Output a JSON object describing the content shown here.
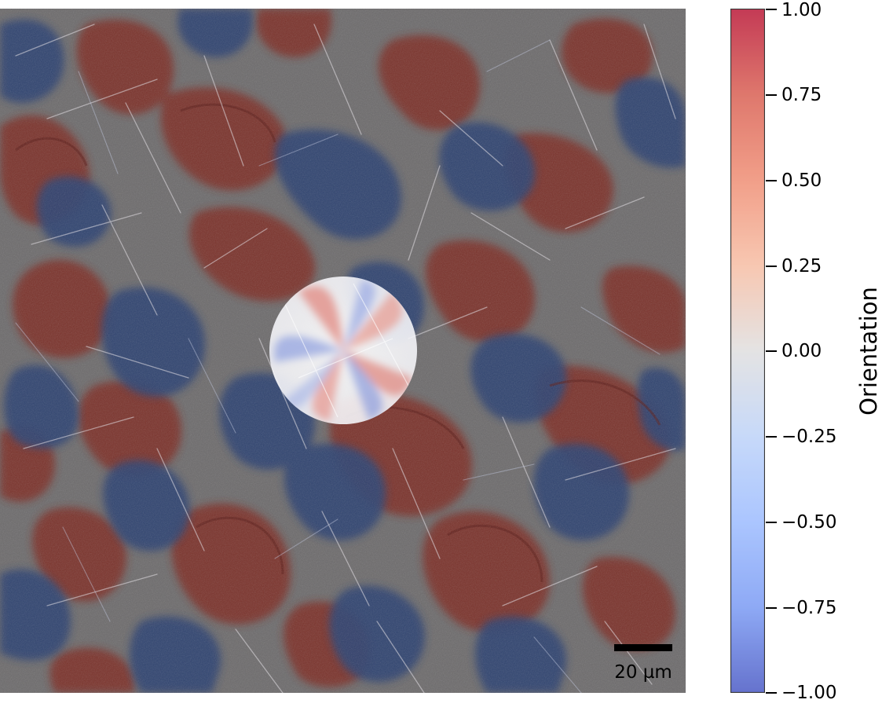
{
  "colorbar": {
    "label": "Orientation",
    "colormap": "coolwarm",
    "range": [
      -1.0,
      1.0
    ],
    "ticks": [
      "1.00",
      "0.75",
      "0.50",
      "0.25",
      "0.00",
      "−0.25",
      "−0.50",
      "−0.75",
      "−1.00"
    ],
    "colors": {
      "max": "#b40426",
      "mid": "#dddddd",
      "min": "#3b4cc0"
    }
  },
  "scalebar": {
    "label": "20 µm"
  },
  "image": {
    "content": "orientation-map-micrograph",
    "domain_colors": [
      "#7a2a24",
      "#2d3f6e",
      "#6f6a68"
    ],
    "center_region": "circular-highlight"
  }
}
